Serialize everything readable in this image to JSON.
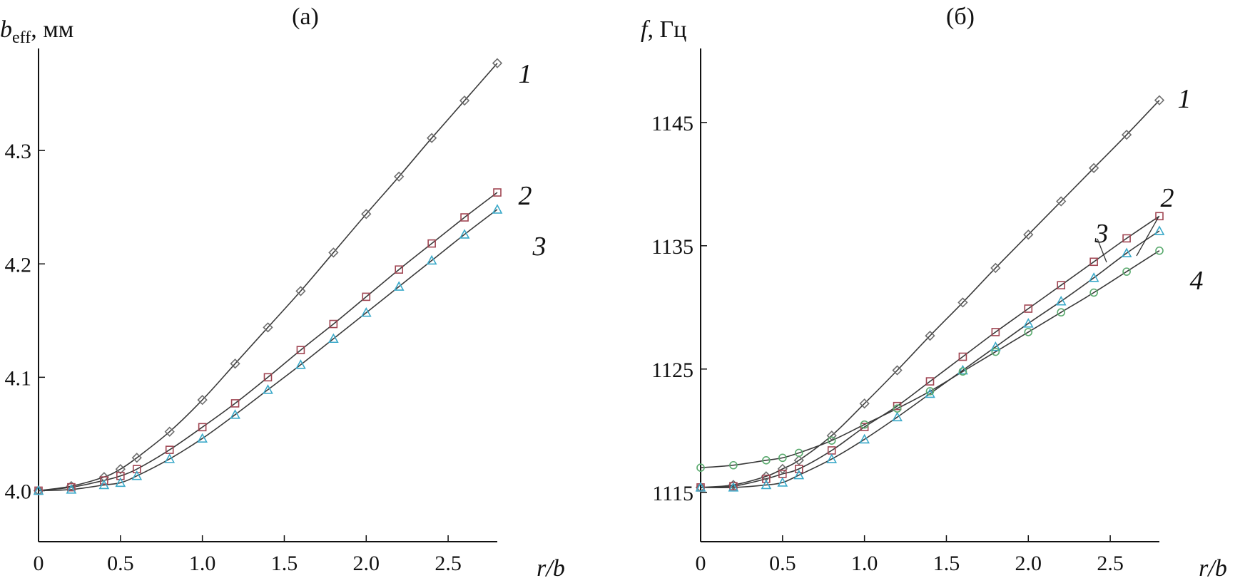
{
  "chart_data": [
    {
      "type": "line",
      "panel_label": "(a)",
      "ylabel_main": "b",
      "ylabel_sub": "eff",
      "ylabel_unit": ", мм",
      "xlabel": "r/b",
      "xlim": [
        0,
        2.8
      ],
      "ylim": [
        3.955,
        4.39
      ],
      "x_ticks": [
        "0",
        "0.5",
        "1.0",
        "1.5",
        "2.0",
        "2.5"
      ],
      "x_tick_values": [
        0,
        0.5,
        1.0,
        1.5,
        2.0,
        2.5
      ],
      "y_ticks": [
        "4.0",
        "4.1",
        "4.2",
        "4.3"
      ],
      "y_tick_values": [
        4.0,
        4.1,
        4.2,
        4.3
      ],
      "x": [
        0,
        0.2,
        0.4,
        0.5,
        0.6,
        0.8,
        1.0,
        1.2,
        1.4,
        1.6,
        1.8,
        2.0,
        2.2,
        2.4,
        2.6,
        2.8
      ],
      "series": [
        {
          "name": "1",
          "marker": "diamond",
          "color": "#6e6e6e",
          "values": [
            4.0,
            4.004,
            4.012,
            4.019,
            4.029,
            4.052,
            4.08,
            4.112,
            4.144,
            4.176,
            4.21,
            4.244,
            4.277,
            4.311,
            4.344,
            4.377
          ]
        },
        {
          "name": "2",
          "marker": "square",
          "color": "#a04552",
          "values": [
            4.0,
            4.003,
            4.009,
            4.013,
            4.019,
            4.036,
            4.056,
            4.077,
            4.1,
            4.124,
            4.147,
            4.171,
            4.195,
            4.218,
            4.241,
            4.263
          ]
        },
        {
          "name": "3",
          "marker": "triangle",
          "color": "#3aa9c9",
          "values": [
            4.0,
            4.001,
            4.005,
            4.007,
            4.013,
            4.028,
            4.046,
            4.067,
            4.089,
            4.111,
            4.134,
            4.157,
            4.18,
            4.203,
            4.226,
            4.248
          ]
        }
      ]
    },
    {
      "type": "line",
      "panel_label": "(б)",
      "ylabel_main": "f",
      "ylabel_unit": ", Гц",
      "xlabel": "r/b",
      "xlim": [
        0,
        2.8
      ],
      "ylim": [
        1111,
        1151
      ],
      "x_ticks": [
        "0",
        "0.5",
        "1.0",
        "1.5",
        "2.0",
        "2.5"
      ],
      "x_tick_values": [
        0,
        0.5,
        1.0,
        1.5,
        2.0,
        2.5
      ],
      "y_ticks": [
        "1115",
        "1125",
        "1135",
        "1145"
      ],
      "y_tick_values": [
        1115,
        1125,
        1135,
        1145
      ],
      "x": [
        0,
        0.2,
        0.4,
        0.5,
        0.6,
        0.8,
        1.0,
        1.2,
        1.4,
        1.6,
        1.8,
        2.0,
        2.2,
        2.4,
        2.6,
        2.8
      ],
      "series": [
        {
          "name": "1",
          "marker": "diamond",
          "color": "#6e6e6e",
          "values": [
            1115.4,
            1115.6,
            1116.3,
            1116.9,
            1117.6,
            1119.6,
            1122.2,
            1124.9,
            1127.7,
            1130.4,
            1133.2,
            1135.9,
            1138.6,
            1141.3,
            1144.0,
            1146.8
          ]
        },
        {
          "name": "2",
          "marker": "square",
          "color": "#a04552",
          "values": [
            1115.4,
            1115.5,
            1116.1,
            1116.5,
            1116.9,
            1118.4,
            1120.3,
            1122.0,
            1124.0,
            1126.0,
            1128.0,
            1129.9,
            1131.8,
            1133.7,
            1135.6,
            1137.4
          ]
        },
        {
          "name": "3",
          "marker": "triangle",
          "color": "#3aa9c9",
          "values": [
            1115.4,
            1115.4,
            1115.6,
            1115.8,
            1116.4,
            1117.7,
            1119.3,
            1121.1,
            1123.0,
            1124.9,
            1126.8,
            1128.7,
            1130.5,
            1132.4,
            1134.4,
            1136.2
          ]
        },
        {
          "name": "4",
          "marker": "circle",
          "color": "#5aaa6e",
          "values": [
            1117.0,
            1117.2,
            1117.6,
            1117.8,
            1118.2,
            1119.2,
            1120.5,
            1121.8,
            1123.2,
            1124.8,
            1126.4,
            1128.0,
            1129.6,
            1131.2,
            1132.9,
            1134.6
          ]
        }
      ]
    }
  ]
}
